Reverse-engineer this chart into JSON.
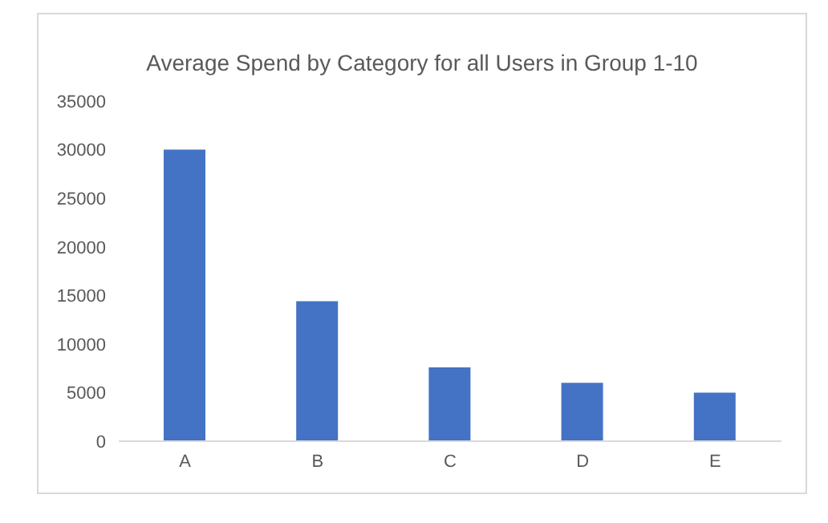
{
  "chart_data": {
    "type": "bar",
    "title": "Average Spend by Category for all Users in Group 1-10",
    "categories": [
      "A",
      "B",
      "C",
      "D",
      "E"
    ],
    "values": [
      30000,
      14400,
      7600,
      6000,
      5000
    ],
    "color": "#4472c4",
    "ylim": [
      0,
      35000
    ],
    "yticks": [
      0,
      5000,
      10000,
      15000,
      20000,
      25000,
      30000,
      35000
    ],
    "grid": false
  }
}
